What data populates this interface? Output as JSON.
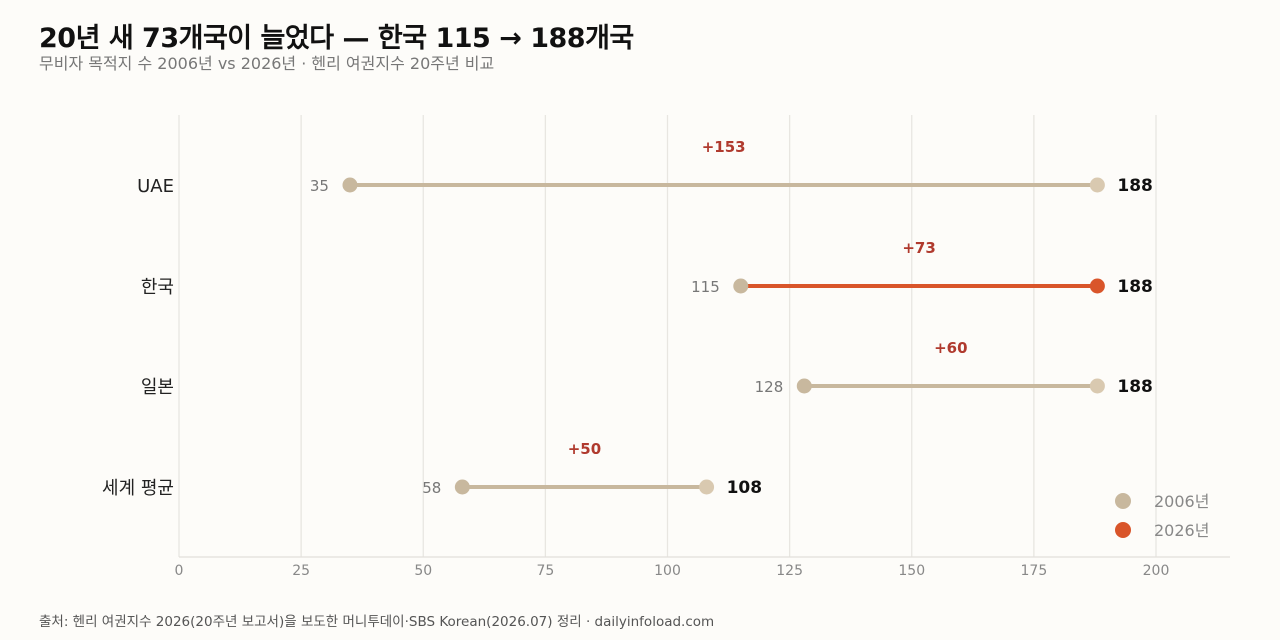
{
  "title": "20년 새 73개국이 늘었다 — 한국 115 → 188개국",
  "subtitle": "무비자 목적지 수 2006년 vs 2026년 · 헨리 여권지수 20주년 비교",
  "source": "출처: 헨리 여권지수 2026(20주년 보고서)을 보도한 머니투데이·SBS Korean(2026.07) 정리 · dailyinfoload.com",
  "colors": {
    "start": "#c8b89e",
    "end_default": "#d9c9b0",
    "highlight": "#d9552a",
    "diff": "#b03a2e",
    "grid": "#e8e6e1"
  },
  "chart_data": {
    "type": "dumbbell",
    "categories": [
      "UAE",
      "한국",
      "일본",
      "세계 평균"
    ],
    "series": [
      {
        "name": "2006년",
        "values": [
          35,
          115,
          128,
          58
        ]
      },
      {
        "name": "2026년",
        "values": [
          188,
          188,
          188,
          108
        ]
      }
    ],
    "differences": [
      "+153",
      "+73",
      "+60",
      "+50"
    ],
    "highlight_category": "한국",
    "xlim": [
      0,
      200
    ],
    "xticks": [
      0,
      25,
      50,
      75,
      100,
      125,
      150,
      175,
      200
    ],
    "grid": true,
    "legend_position": "bottom-right"
  }
}
